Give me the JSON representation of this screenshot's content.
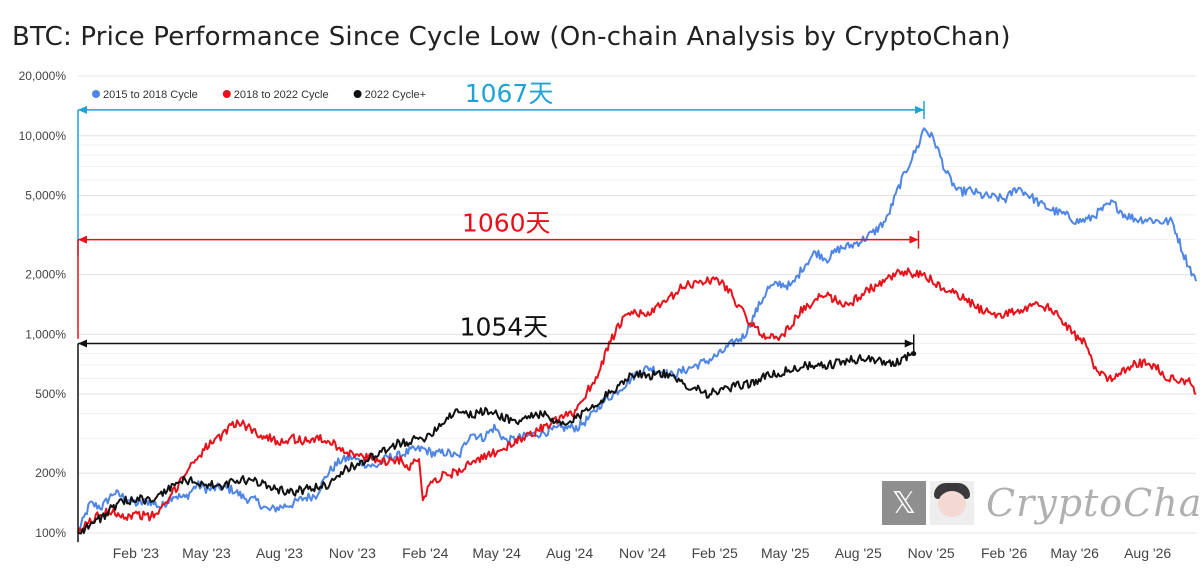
{
  "title": "BTC: Price Performance Since Cycle Low (On-chain Analysis by CryptoChan)",
  "watermark": {
    "text": "CryptoChan",
    "x_logo": "𝕏"
  },
  "chart_data": {
    "type": "line",
    "title": "BTC: Price Performance Since Cycle Low (On-chain Analysis by CryptoChan)",
    "y_scale": "log",
    "ylim": [
      100,
      20000
    ],
    "y_ticks": [
      {
        "v": 100,
        "label": "100%"
      },
      {
        "v": 200,
        "label": "200%"
      },
      {
        "v": 500,
        "label": "500%"
      },
      {
        "v": 1000,
        "label": "1,000%"
      },
      {
        "v": 2000,
        "label": "2,000%"
      },
      {
        "v": 5000,
        "label": "5,000%"
      },
      {
        "v": 10000,
        "label": "10,000%"
      },
      {
        "v": 20000,
        "label": "20,000%"
      }
    ],
    "xlim": [
      0,
      1410
    ],
    "x_ticks": [
      {
        "day": 73,
        "label": "Feb '23"
      },
      {
        "day": 162,
        "label": "May '23"
      },
      {
        "day": 254,
        "label": "Aug '23"
      },
      {
        "day": 346,
        "label": "Nov '23"
      },
      {
        "day": 438,
        "label": "Feb '24"
      },
      {
        "day": 528,
        "label": "May '24"
      },
      {
        "day": 620,
        "label": "Aug '24"
      },
      {
        "day": 712,
        "label": "Nov '24"
      },
      {
        "day": 803,
        "label": "Feb '25"
      },
      {
        "day": 892,
        "label": "May '25"
      },
      {
        "day": 984,
        "label": "Aug '25"
      },
      {
        "day": 1076,
        "label": "Nov '25"
      },
      {
        "day": 1168,
        "label": "Feb '26"
      },
      {
        "day": 1257,
        "label": "May '26"
      },
      {
        "day": 1349,
        "label": "Aug '26"
      }
    ],
    "legend_position": "top-left",
    "series": [
      {
        "name": "2015 to 2018 Cycle",
        "color": "#4f86e6",
        "points": [
          [
            0,
            100
          ],
          [
            15,
            140
          ],
          [
            30,
            135
          ],
          [
            45,
            160
          ],
          [
            60,
            150
          ],
          [
            75,
            140
          ],
          [
            90,
            145
          ],
          [
            105,
            135
          ],
          [
            120,
            155
          ],
          [
            135,
            150
          ],
          [
            150,
            175
          ],
          [
            165,
            165
          ],
          [
            180,
            170
          ],
          [
            195,
            165
          ],
          [
            210,
            150
          ],
          [
            225,
            145
          ],
          [
            240,
            130
          ],
          [
            255,
            135
          ],
          [
            270,
            140
          ],
          [
            285,
            150
          ],
          [
            300,
            155
          ],
          [
            315,
            200
          ],
          [
            330,
            230
          ],
          [
            345,
            240
          ],
          [
            360,
            225
          ],
          [
            375,
            215
          ],
          [
            390,
            240
          ],
          [
            405,
            245
          ],
          [
            420,
            260
          ],
          [
            435,
            265
          ],
          [
            450,
            250
          ],
          [
            465,
            255
          ],
          [
            480,
            240
          ],
          [
            495,
            320
          ],
          [
            510,
            300
          ],
          [
            525,
            340
          ],
          [
            540,
            290
          ],
          [
            555,
            300
          ],
          [
            570,
            310
          ],
          [
            585,
            320
          ],
          [
            600,
            330
          ],
          [
            615,
            340
          ],
          [
            630,
            340
          ],
          [
            645,
            380
          ],
          [
            660,
            450
          ],
          [
            675,
            500
          ],
          [
            690,
            560
          ],
          [
            705,
            640
          ],
          [
            720,
            680
          ],
          [
            735,
            650
          ],
          [
            750,
            620
          ],
          [
            765,
            660
          ],
          [
            780,
            700
          ],
          [
            795,
            740
          ],
          [
            810,
            800
          ],
          [
            825,
            900
          ],
          [
            840,
            980
          ],
          [
            855,
            1300
          ],
          [
            870,
            1700
          ],
          [
            885,
            1800
          ],
          [
            900,
            1750
          ],
          [
            915,
            2200
          ],
          [
            930,
            2600
          ],
          [
            945,
            2400
          ],
          [
            960,
            2700
          ],
          [
            975,
            2800
          ],
          [
            990,
            3000
          ],
          [
            1005,
            3300
          ],
          [
            1020,
            3800
          ],
          [
            1035,
            5500
          ],
          [
            1050,
            7500
          ],
          [
            1060,
            9000
          ],
          [
            1067,
            11000
          ],
          [
            1080,
            9500
          ],
          [
            1095,
            6500
          ],
          [
            1110,
            5200
          ],
          [
            1125,
            5300
          ],
          [
            1140,
            5000
          ],
          [
            1155,
            4900
          ],
          [
            1170,
            4800
          ],
          [
            1185,
            5500
          ],
          [
            1200,
            5000
          ],
          [
            1215,
            4500
          ],
          [
            1230,
            4200
          ],
          [
            1245,
            4000
          ],
          [
            1260,
            3700
          ],
          [
            1275,
            3800
          ],
          [
            1290,
            4200
          ],
          [
            1305,
            4600
          ],
          [
            1320,
            4000
          ],
          [
            1335,
            3800
          ],
          [
            1350,
            3800
          ],
          [
            1365,
            3700
          ],
          [
            1380,
            3700
          ],
          [
            1395,
            2500
          ],
          [
            1410,
            1850
          ]
        ]
      },
      {
        "name": "2018 to 2022 Cycle",
        "color": "#e8111a",
        "points": [
          [
            0,
            100
          ],
          [
            15,
            115
          ],
          [
            30,
            125
          ],
          [
            45,
            130
          ],
          [
            60,
            120
          ],
          [
            75,
            125
          ],
          [
            90,
            120
          ],
          [
            105,
            130
          ],
          [
            120,
            160
          ],
          [
            135,
            200
          ],
          [
            150,
            240
          ],
          [
            165,
            280
          ],
          [
            180,
            300
          ],
          [
            195,
            360
          ],
          [
            210,
            350
          ],
          [
            225,
            320
          ],
          [
            240,
            300
          ],
          [
            255,
            290
          ],
          [
            270,
            300
          ],
          [
            285,
            290
          ],
          [
            300,
            300
          ],
          [
            315,
            290
          ],
          [
            330,
            270
          ],
          [
            345,
            250
          ],
          [
            360,
            240
          ],
          [
            375,
            235
          ],
          [
            390,
            230
          ],
          [
            405,
            235
          ],
          [
            420,
            215
          ],
          [
            430,
            240
          ],
          [
            435,
            150
          ],
          [
            445,
            180
          ],
          [
            460,
            195
          ],
          [
            475,
            200
          ],
          [
            490,
            220
          ],
          [
            505,
            230
          ],
          [
            520,
            250
          ],
          [
            535,
            265
          ],
          [
            550,
            280
          ],
          [
            565,
            310
          ],
          [
            580,
            330
          ],
          [
            595,
            350
          ],
          [
            610,
            380
          ],
          [
            625,
            400
          ],
          [
            640,
            500
          ],
          [
            655,
            620
          ],
          [
            670,
            900
          ],
          [
            685,
            1150
          ],
          [
            700,
            1300
          ],
          [
            715,
            1250
          ],
          [
            730,
            1350
          ],
          [
            745,
            1500
          ],
          [
            760,
            1700
          ],
          [
            775,
            1800
          ],
          [
            790,
            1850
          ],
          [
            805,
            1900
          ],
          [
            820,
            1700
          ],
          [
            835,
            1350
          ],
          [
            850,
            1100
          ],
          [
            865,
            1000
          ],
          [
            880,
            950
          ],
          [
            895,
            1050
          ],
          [
            910,
            1300
          ],
          [
            925,
            1400
          ],
          [
            940,
            1600
          ],
          [
            955,
            1500
          ],
          [
            970,
            1400
          ],
          [
            985,
            1550
          ],
          [
            1000,
            1700
          ],
          [
            1015,
            1800
          ],
          [
            1030,
            2000
          ],
          [
            1045,
            2050
          ],
          [
            1060,
            2000
          ],
          [
            1075,
            1900
          ],
          [
            1090,
            1700
          ],
          [
            1105,
            1600
          ],
          [
            1120,
            1500
          ],
          [
            1135,
            1350
          ],
          [
            1150,
            1300
          ],
          [
            1165,
            1250
          ],
          [
            1180,
            1300
          ],
          [
            1195,
            1350
          ],
          [
            1210,
            1400
          ],
          [
            1225,
            1350
          ],
          [
            1240,
            1200
          ],
          [
            1255,
            1000
          ],
          [
            1270,
            900
          ],
          [
            1285,
            650
          ],
          [
            1300,
            600
          ],
          [
            1315,
            650
          ],
          [
            1330,
            700
          ],
          [
            1345,
            720
          ],
          [
            1360,
            680
          ],
          [
            1375,
            600
          ],
          [
            1390,
            580
          ],
          [
            1405,
            580
          ],
          [
            1410,
            500
          ]
        ]
      },
      {
        "name": "2022 Cycle+",
        "color": "#111111",
        "points": [
          [
            0,
            100
          ],
          [
            15,
            110
          ],
          [
            30,
            120
          ],
          [
            45,
            135
          ],
          [
            60,
            145
          ],
          [
            75,
            150
          ],
          [
            90,
            145
          ],
          [
            105,
            155
          ],
          [
            120,
            175
          ],
          [
            135,
            185
          ],
          [
            150,
            180
          ],
          [
            165,
            175
          ],
          [
            180,
            170
          ],
          [
            195,
            180
          ],
          [
            210,
            185
          ],
          [
            225,
            180
          ],
          [
            240,
            175
          ],
          [
            255,
            165
          ],
          [
            270,
            160
          ],
          [
            285,
            165
          ],
          [
            300,
            170
          ],
          [
            315,
            175
          ],
          [
            330,
            200
          ],
          [
            345,
            215
          ],
          [
            360,
            230
          ],
          [
            375,
            245
          ],
          [
            390,
            260
          ],
          [
            405,
            285
          ],
          [
            420,
            290
          ],
          [
            435,
            300
          ],
          [
            450,
            330
          ],
          [
            465,
            380
          ],
          [
            480,
            420
          ],
          [
            495,
            390
          ],
          [
            510,
            410
          ],
          [
            525,
            400
          ],
          [
            540,
            380
          ],
          [
            555,
            360
          ],
          [
            570,
            390
          ],
          [
            585,
            400
          ],
          [
            600,
            360
          ],
          [
            615,
            350
          ],
          [
            630,
            380
          ],
          [
            645,
            430
          ],
          [
            660,
            470
          ],
          [
            675,
            520
          ],
          [
            690,
            600
          ],
          [
            705,
            640
          ],
          [
            720,
            620
          ],
          [
            735,
            640
          ],
          [
            750,
            600
          ],
          [
            765,
            560
          ],
          [
            780,
            540
          ],
          [
            795,
            500
          ],
          [
            810,
            520
          ],
          [
            825,
            540
          ],
          [
            840,
            560
          ],
          [
            855,
            580
          ],
          [
            870,
            620
          ],
          [
            885,
            640
          ],
          [
            900,
            660
          ],
          [
            915,
            700
          ],
          [
            930,
            680
          ],
          [
            945,
            700
          ],
          [
            960,
            720
          ],
          [
            975,
            740
          ],
          [
            990,
            760
          ],
          [
            1005,
            740
          ],
          [
            1020,
            720
          ],
          [
            1035,
            730
          ],
          [
            1045,
            780
          ],
          [
            1054,
            800
          ]
        ]
      }
    ],
    "annotations": [
      {
        "label": "1067天",
        "color": "#1fa2d8",
        "start_day": 0,
        "end_day": 1067,
        "y": 13500,
        "base": 2500
      },
      {
        "label": "1060天",
        "color": "#e8111a",
        "start_day": 0,
        "end_day": 1060,
        "y": 3000,
        "base": 950
      },
      {
        "label": "1054天",
        "color": "#111111",
        "start_day": 0,
        "end_day": 1054,
        "y": 900,
        "base": 90
      }
    ]
  }
}
